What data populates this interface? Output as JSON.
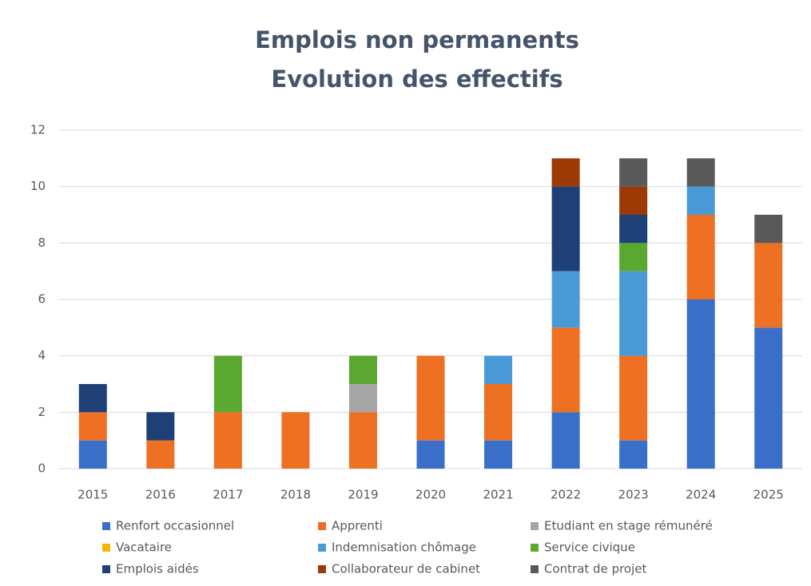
{
  "chart_data": {
    "type": "stacked_bar",
    "title": "Emplois non permanents",
    "subtitle": "Evolution des effectifs",
    "categories": [
      "2015",
      "2016",
      "2017",
      "2018",
      "2019",
      "2020",
      "2021",
      "2022",
      "2023",
      "2024",
      "2025"
    ],
    "series": [
      {
        "name": "Renfort occasionnel",
        "color": "#3a6fc9",
        "values": [
          1,
          0,
          0,
          0,
          0,
          1,
          1,
          2,
          1,
          6,
          5
        ]
      },
      {
        "name": "Apprenti",
        "color": "#ee7023",
        "values": [
          1,
          1,
          2,
          2,
          2,
          3,
          2,
          3,
          3,
          3,
          3
        ]
      },
      {
        "name": "Etudiant en stage rémunéré",
        "color": "#a5a5a5",
        "values": [
          0,
          0,
          0,
          0,
          1,
          0,
          0,
          0,
          0,
          0,
          0
        ]
      },
      {
        "name": "Vacataire",
        "color": "#f5b800",
        "values": [
          0,
          0,
          0,
          0,
          0,
          0,
          0,
          0,
          0,
          0,
          0
        ]
      },
      {
        "name": "Indemnisation chômage",
        "color": "#4a9ad8",
        "values": [
          0,
          0,
          0,
          0,
          0,
          0,
          1,
          2,
          3,
          1,
          0
        ]
      },
      {
        "name": "Service civique",
        "color": "#5aa830",
        "values": [
          0,
          0,
          2,
          0,
          1,
          0,
          0,
          0,
          1,
          0,
          0
        ]
      },
      {
        "name": "Emplois aidés",
        "color": "#1f3f77",
        "values": [
          1,
          1,
          0,
          0,
          0,
          0,
          0,
          3,
          1,
          0,
          0
        ]
      },
      {
        "name": "Collaborateur de cabinet",
        "color": "#9c3a06",
        "values": [
          0,
          0,
          0,
          0,
          0,
          0,
          0,
          1,
          1,
          0,
          0
        ]
      },
      {
        "name": "Contrat de projet",
        "color": "#595959",
        "values": [
          0,
          0,
          0,
          0,
          0,
          0,
          0,
          0,
          1,
          1,
          1
        ]
      }
    ],
    "ylim": [
      0,
      12
    ],
    "yticks": [
      0,
      2,
      4,
      6,
      8,
      10,
      12
    ],
    "grid": true,
    "legend": "bottom"
  }
}
